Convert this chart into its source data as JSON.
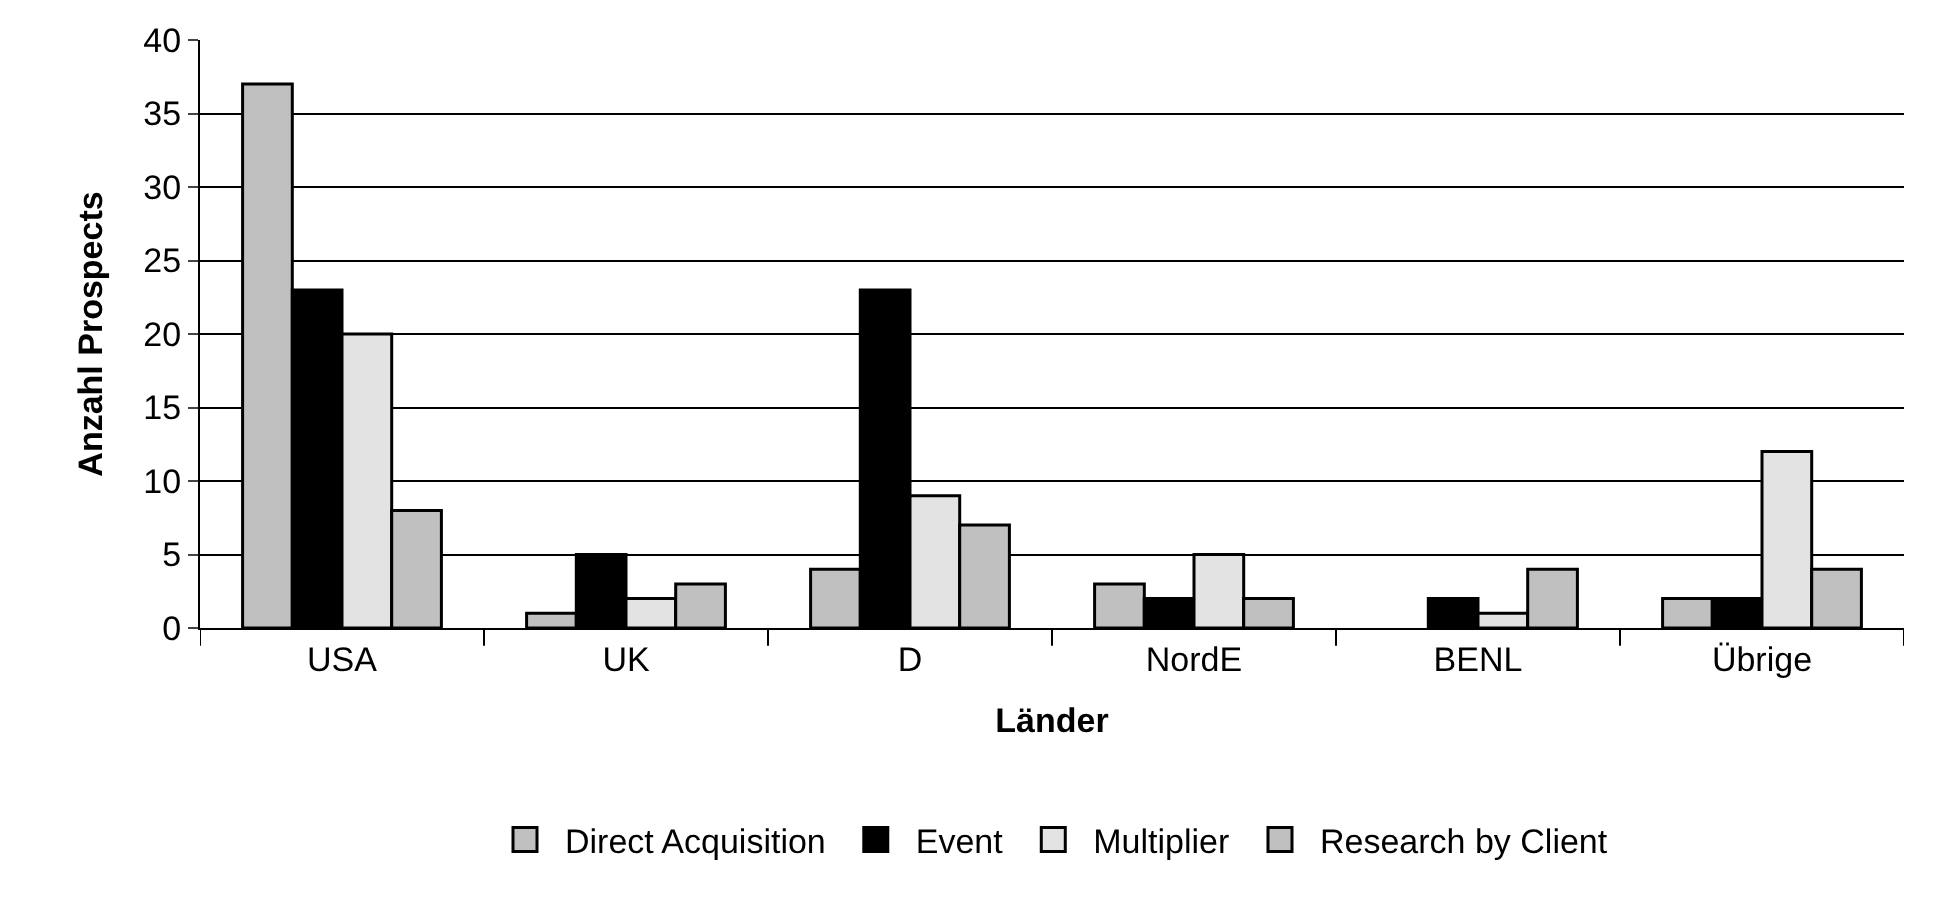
{
  "chart_data": {
    "type": "bar",
    "xlabel": "Länder",
    "ylabel": "Anzahl Prospects",
    "categories": [
      "USA",
      "UK",
      "D",
      "NordE",
      "BENL",
      "Übrige"
    ],
    "series": [
      {
        "name": "Direct Acquisition",
        "color": "#c0c0c0",
        "values": [
          37,
          1,
          4,
          3,
          0,
          2
        ]
      },
      {
        "name": "Event",
        "color": "#000000",
        "values": [
          23,
          5,
          23,
          2,
          2,
          2
        ]
      },
      {
        "name": "Multiplier",
        "color": "#e3e3e3",
        "values": [
          20,
          2,
          9,
          5,
          1,
          12
        ]
      },
      {
        "name": "Research by Client",
        "color": "#c0c0c0",
        "values": [
          8,
          3,
          7,
          2,
          4,
          4
        ]
      }
    ],
    "ylim": [
      0,
      40
    ],
    "yticks": [
      0,
      5,
      10,
      15,
      20,
      25,
      30,
      35,
      40
    ],
    "grid": "y",
    "legend": "bottom"
  }
}
